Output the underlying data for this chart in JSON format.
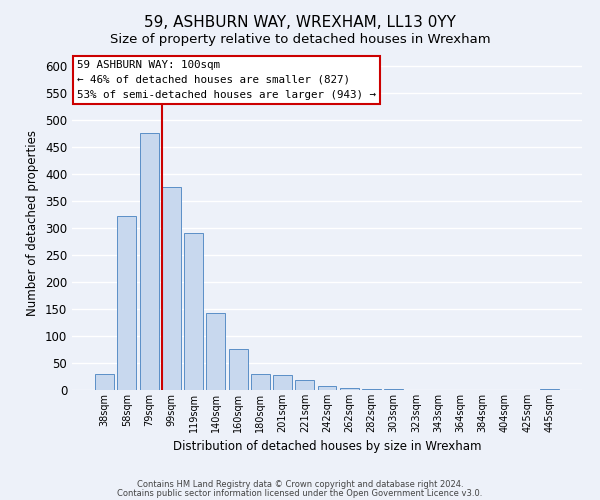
{
  "title": "59, ASHBURN WAY, WREXHAM, LL13 0YY",
  "subtitle": "Size of property relative to detached houses in Wrexham",
  "xlabel": "Distribution of detached houses by size in Wrexham",
  "ylabel": "Number of detached properties",
  "bar_labels": [
    "38sqm",
    "58sqm",
    "79sqm",
    "99sqm",
    "119sqm",
    "140sqm",
    "160sqm",
    "180sqm",
    "201sqm",
    "221sqm",
    "242sqm",
    "262sqm",
    "282sqm",
    "303sqm",
    "323sqm",
    "343sqm",
    "364sqm",
    "384sqm",
    "404sqm",
    "425sqm",
    "445sqm"
  ],
  "bar_values": [
    30,
    322,
    475,
    375,
    290,
    143,
    75,
    30,
    28,
    18,
    8,
    3,
    1,
    1,
    0,
    0,
    0,
    0,
    0,
    0,
    2
  ],
  "bar_color": "#c8d8ee",
  "bar_edge_color": "#5b8fc7",
  "ylim": [
    0,
    620
  ],
  "yticks": [
    0,
    50,
    100,
    150,
    200,
    250,
    300,
    350,
    400,
    450,
    500,
    550,
    600
  ],
  "vline_color": "#cc0000",
  "vline_position": 3.5,
  "annotation_text": "59 ASHBURN WAY: 100sqm\n← 46% of detached houses are smaller (827)\n53% of semi-detached houses are larger (943) →",
  "annotation_box_color": "#ffffff",
  "annotation_box_edge_color": "#cc0000",
  "footnote1": "Contains HM Land Registry data © Crown copyright and database right 2024.",
  "footnote2": "Contains public sector information licensed under the Open Government Licence v3.0.",
  "background_color": "#edf1f9",
  "grid_color": "#ffffff",
  "title_fontsize": 11,
  "subtitle_fontsize": 9.5
}
